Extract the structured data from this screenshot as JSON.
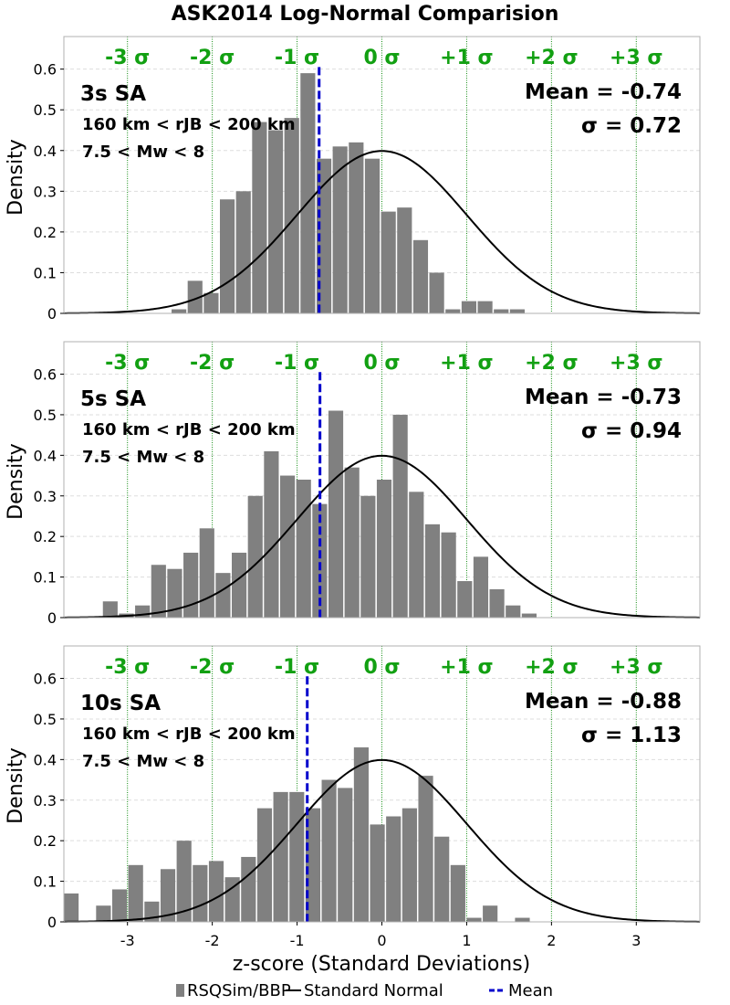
{
  "title": "ASK2014 Log-Normal Comparision",
  "xlabel": "z-score (Standard Deviations)",
  "ylabel": "Density",
  "sigma_labels": [
    "-3 σ",
    "-2 σ",
    "-1 σ",
    "0 σ",
    "+1 σ",
    "+2 σ",
    "+3 σ"
  ],
  "legend": [
    {
      "label": "RSQSim/BBP",
      "color": "#808080"
    },
    {
      "label": "Standard Normal",
      "color": "#000000"
    },
    {
      "label": "Mean",
      "color": "#0000cc"
    }
  ],
  "colors": {
    "bars": "#808080",
    "normal": "#000000",
    "mean": "#0000cc",
    "sigma_lines": "#128c12",
    "sigma_text": "#12a012",
    "grid": "#dddddd"
  },
  "chart_data": [
    {
      "type": "bar",
      "panel_title": "3s SA",
      "distance_label": "160 km < rJB < 200 km",
      "magnitude_label": "7.5 < Mw < 8",
      "mean_label": "Mean = -0.74",
      "sigma_label": "σ = 0.72",
      "mean": -0.74,
      "xlim": [
        -3.75,
        3.75
      ],
      "ylim": [
        0,
        0.68
      ],
      "xticks": [
        -3,
        -2,
        -1,
        0,
        1,
        2,
        3
      ],
      "yticks": [
        0,
        0.1,
        0.2,
        0.3,
        0.4,
        0.5,
        0.6
      ],
      "bin_width": 0.19,
      "bin_starts": [
        -2.48,
        -2.29,
        -2.1,
        -1.91,
        -1.72,
        -1.53,
        -1.34,
        -1.15,
        -0.96,
        -0.77,
        -0.58,
        -0.39,
        -0.2,
        -0.01,
        0.18,
        0.37,
        0.56,
        0.75,
        0.94,
        1.13,
        1.32,
        1.51
      ],
      "values": [
        0.01,
        0.08,
        0.05,
        0.28,
        0.3,
        0.47,
        0.45,
        0.48,
        0.59,
        0.38,
        0.41,
        0.42,
        0.38,
        0.25,
        0.26,
        0.18,
        0.1,
        0.01,
        0.03,
        0.03,
        0.01,
        0.01
      ]
    },
    {
      "type": "bar",
      "panel_title": "5s SA",
      "distance_label": "160 km < rJB < 200 km",
      "magnitude_label": "7.5 < Mw < 8",
      "mean_label": "Mean = -0.73",
      "sigma_label": "σ = 0.94",
      "mean": -0.73,
      "xlim": [
        -3.75,
        3.75
      ],
      "ylim": [
        0,
        0.68
      ],
      "xticks": [
        -3,
        -2,
        -1,
        0,
        1,
        2,
        3
      ],
      "yticks": [
        0,
        0.1,
        0.2,
        0.3,
        0.4,
        0.5,
        0.6
      ],
      "bin_width": 0.19,
      "bin_starts": [
        -3.29,
        -3.1,
        -2.91,
        -2.72,
        -2.53,
        -2.34,
        -2.15,
        -1.96,
        -1.77,
        -1.58,
        -1.39,
        -1.2,
        -1.01,
        -0.82,
        -0.63,
        -0.44,
        -0.25,
        -0.06,
        0.13,
        0.32,
        0.51,
        0.7,
        0.89,
        1.08,
        1.27,
        1.46,
        1.65
      ],
      "values": [
        0.04,
        0.01,
        0.03,
        0.13,
        0.12,
        0.16,
        0.22,
        0.11,
        0.16,
        0.3,
        0.41,
        0.35,
        0.34,
        0.28,
        0.51,
        0.37,
        0.3,
        0.34,
        0.5,
        0.31,
        0.23,
        0.21,
        0.09,
        0.15,
        0.07,
        0.03,
        0.01
      ]
    },
    {
      "type": "bar",
      "panel_title": "10s SA",
      "distance_label": "160 km < rJB < 200 km",
      "magnitude_label": "7.5 < Mw < 8",
      "mean_label": "Mean = -0.88",
      "sigma_label": "σ = 1.13",
      "mean": -0.88,
      "xlim": [
        -3.75,
        3.75
      ],
      "ylim": [
        0,
        0.68
      ],
      "xticks": [
        -3,
        -2,
        -1,
        0,
        1,
        2,
        3
      ],
      "yticks": [
        0,
        0.1,
        0.2,
        0.3,
        0.4,
        0.5,
        0.6
      ],
      "bin_width": 0.19,
      "bin_starts": [
        -3.75,
        -3.56,
        -3.37,
        -3.18,
        -2.99,
        -2.8,
        -2.61,
        -2.42,
        -2.23,
        -2.04,
        -1.85,
        -1.66,
        -1.47,
        -1.28,
        -1.09,
        -0.9,
        -0.71,
        -0.52,
        -0.33,
        -0.14,
        0.05,
        0.24,
        0.43,
        0.62,
        0.81,
        1.0,
        1.19,
        1.38,
        1.57
      ],
      "values": [
        0.07,
        0.0,
        0.04,
        0.08,
        0.14,
        0.05,
        0.13,
        0.2,
        0.14,
        0.15,
        0.11,
        0.16,
        0.28,
        0.32,
        0.32,
        0.28,
        0.35,
        0.33,
        0.43,
        0.24,
        0.26,
        0.28,
        0.36,
        0.21,
        0.14,
        0.01,
        0.04,
        0.0,
        0.01
      ]
    }
  ]
}
